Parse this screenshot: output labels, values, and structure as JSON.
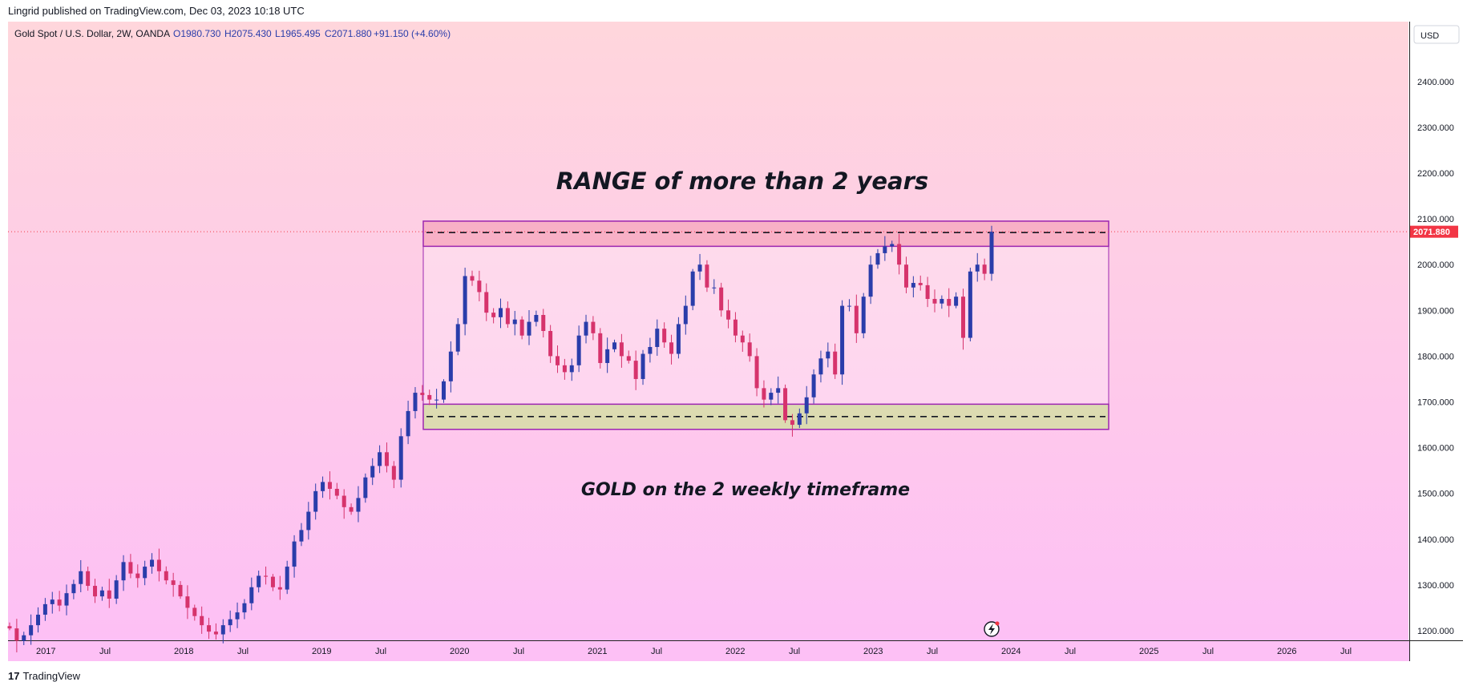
{
  "header": {
    "published": "Lingrid published on TradingView.com, Dec 03, 2023 10:18 UTC"
  },
  "footer": {
    "logo_icon": "tradingview-logo-icon",
    "brand": "TradingView"
  },
  "chart_data": {
    "type": "candlestick",
    "legend": {
      "symbol": "Gold Spot / U.S. Dollar, 2W, OANDA",
      "open": "O1980.730",
      "high": "H2075.430",
      "low": "L1965.495",
      "close": "C2071.880",
      "change": "+91.150 (+4.60%)"
    },
    "currency": "USD",
    "last_price_label": "2071.880",
    "last_price": 2071.88,
    "ylim": [
      1180,
      2500
    ],
    "y_ticks": [
      "1200.000",
      "1300.000",
      "1400.000",
      "1500.000",
      "1600.000",
      "1700.000",
      "1800.000",
      "1900.000",
      "2000.000",
      "2100.000",
      "2200.000",
      "2300.000",
      "2400.000"
    ],
    "x_ticks": [
      "2017",
      "Jul",
      "2018",
      "Jul",
      "2019",
      "Jul",
      "2020",
      "Jul",
      "2021",
      "Jul",
      "2022",
      "Jul",
      "2023",
      "Jul",
      "2024",
      "Jul",
      "2025",
      "Jul",
      "2026",
      "Jul"
    ],
    "annotations": {
      "title": "RANGE of more than 2 years",
      "subtitle": "GOLD on the 2 weekly timeframe"
    },
    "zones": {
      "resistance": {
        "from": 2040,
        "to": 2095,
        "level": 2070
      },
      "support": {
        "from": 1640,
        "to": 1695,
        "level": 1668
      },
      "range": {
        "from": 1640,
        "to": 2095
      }
    },
    "colors": {
      "up": "#2a3daa",
      "down": "#d6336c",
      "resistance_fill": "#f7a8bf",
      "support_fill": "#d8dcaa",
      "box": "#9c27b0",
      "price_tag": "#f23645"
    },
    "close_path": [
      1205,
      1178,
      1190,
      1212,
      1235,
      1258,
      1268,
      1255,
      1282,
      1302,
      1330,
      1298,
      1275,
      1288,
      1270,
      1310,
      1350,
      1325,
      1315,
      1340,
      1355,
      1330,
      1310,
      1300,
      1275,
      1250,
      1232,
      1212,
      1198,
      1192,
      1212,
      1225,
      1240,
      1260,
      1295,
      1320,
      1318,
      1295,
      1290,
      1340,
      1395,
      1420,
      1460,
      1505,
      1525,
      1510,
      1495,
      1470,
      1460,
      1490,
      1535,
      1560,
      1590,
      1560,
      1530,
      1625,
      1680,
      1720,
      1715,
      1705,
      1705,
      1745,
      1810,
      1870,
      1975,
      1965,
      1940,
      1895,
      1885,
      1905,
      1870,
      1880,
      1845,
      1875,
      1890,
      1855,
      1800,
      1780,
      1765,
      1780,
      1845,
      1875,
      1850,
      1785,
      1815,
      1830,
      1800,
      1790,
      1750,
      1805,
      1820,
      1860,
      1830,
      1805,
      1870,
      1910,
      1985,
      2000,
      1950,
      1950,
      1900,
      1880,
      1845,
      1830,
      1800,
      1730,
      1705,
      1720,
      1730,
      1660,
      1650,
      1675,
      1710,
      1760,
      1795,
      1810,
      1760,
      1910,
      1910,
      1850,
      1930,
      2000,
      2025,
      2040,
      2045,
      2000,
      1950,
      1960,
      1955,
      1925,
      1915,
      1925,
      1910,
      1930,
      1840,
      1985,
      2000,
      1980,
      2071.88
    ]
  }
}
